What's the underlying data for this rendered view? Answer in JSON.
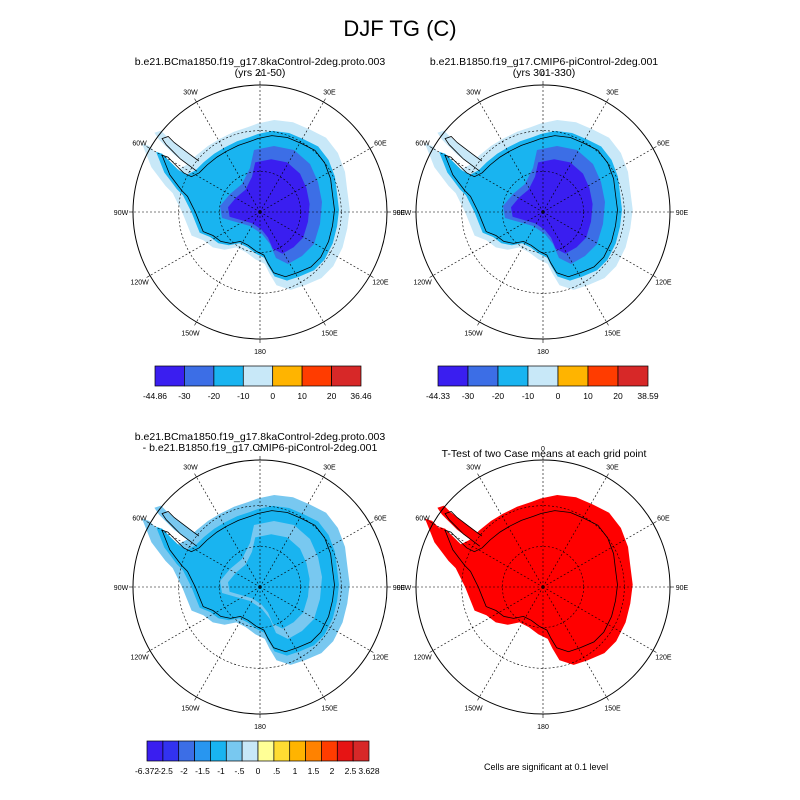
{
  "figure": {
    "title": "DJF TG (C)",
    "footnote": "Cells are significant at 0.1 level"
  },
  "map_labels": {
    "lon_top": "0",
    "lon_30e": "30E",
    "lon_60e": "60E",
    "lon_90e": "90E",
    "lon_120e": "120E",
    "lon_150e": "150E",
    "lon_180": "180",
    "lon_150w": "150W",
    "lon_120w": "120W",
    "lon_90w": "90W",
    "lon_60w": "60W",
    "lon_30w": "30W"
  },
  "chart_data": [
    {
      "type": "heatmap",
      "projection": "south-polar-stereographic",
      "title_line1": "b.e21.BCma1850.f19_g17.8kaControl-2deg.proto.003",
      "title_line2": "(yrs 21-50)",
      "colorbar": {
        "colors": [
          "#3a1ef0",
          "#3c6ee6",
          "#19b4f0",
          "#c8e8f8",
          "#ffb400",
          "#ff3c00",
          "#d72828"
        ],
        "labels": [
          "-44.86",
          "-30",
          "-20",
          "-10",
          "0",
          "10",
          "20",
          "36.46"
        ],
        "min": -44.86,
        "max": 36.46
      }
    },
    {
      "type": "heatmap",
      "projection": "south-polar-stereographic",
      "title_line1": "b.e21.B1850.f19_g17.CMIP6-piControl-2deg.001",
      "title_line2": "(yrs 301-330)",
      "colorbar": {
        "colors": [
          "#3a1ef0",
          "#3c6ee6",
          "#19b4f0",
          "#c8e8f8",
          "#ffb400",
          "#ff3c00",
          "#d72828"
        ],
        "labels": [
          "-44.33",
          "-30",
          "-20",
          "-10",
          "0",
          "10",
          "20",
          "38.59"
        ],
        "min": -44.33,
        "max": 38.59
      }
    },
    {
      "type": "heatmap",
      "projection": "south-polar-stereographic",
      "title_line1": "b.e21.BCma1850.f19_g17.8kaControl-2deg.proto.003",
      "title_line2": "- b.e21.B1850.f19_g17.CMIP6-piControl-2deg.001",
      "colorbar": {
        "colors": [
          "#3a1ef0",
          "#3232f0",
          "#3c6ee6",
          "#2896f0",
          "#19b4f0",
          "#78c8f0",
          "#c8e8f8",
          "#ffff96",
          "#ffdc32",
          "#ffb400",
          "#ff8200",
          "#ff3c00",
          "#e61414",
          "#d72828"
        ],
        "labels": [
          "-6.372",
          "-2.5",
          "-2",
          "-1.5",
          "-1",
          "-.5",
          "0",
          ".5",
          "1",
          "1.5",
          "2",
          "2.5",
          "3.628"
        ],
        "min": -6.372,
        "max": 3.628
      }
    },
    {
      "type": "heatmap",
      "projection": "south-polar-stereographic",
      "title_line1": "T-Test of two Case means at each grid point",
      "title_line2": "",
      "significance_color": "#ff0000"
    }
  ]
}
